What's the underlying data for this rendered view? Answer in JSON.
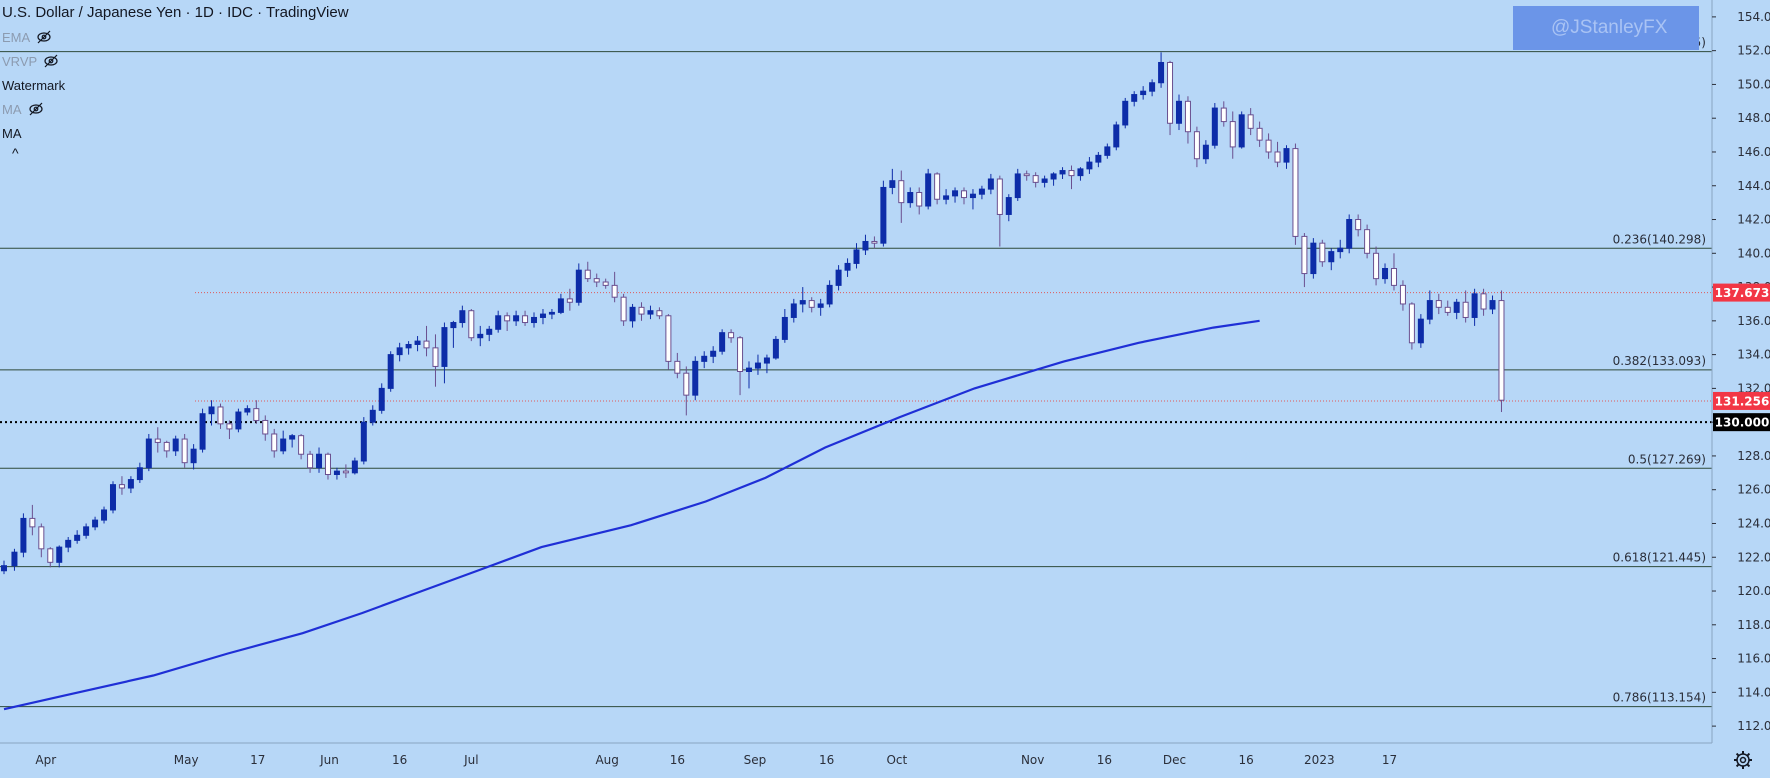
{
  "legend": {
    "title": "U.S. Dollar / Japanese Yen · 1D · IDC · TradingView",
    "indicators": [
      {
        "label": "EMA",
        "hidden": true
      },
      {
        "label": "VRVP",
        "hidden": true
      },
      {
        "label": "Watermark",
        "hidden": false
      },
      {
        "label": "MA",
        "hidden": true
      },
      {
        "label": "MA",
        "hidden": false
      }
    ],
    "collapse_glyph": "^"
  },
  "watermark": "@JStanleyFX",
  "chart_data": {
    "type": "candlestick",
    "title": "U.S. Dollar / Japanese Yen · 1D · IDC · TradingView",
    "ylim": [
      111,
      155
    ],
    "y_ticks": [
      "112.000",
      "114.000",
      "116.000",
      "118.000",
      "120.000",
      "122.000",
      "124.000",
      "126.000",
      "128.000",
      "130.000",
      "132.000",
      "134.000",
      "136.000",
      "138.000",
      "140.000",
      "142.000",
      "144.000",
      "146.000",
      "148.000",
      "150.000",
      "152.000",
      "154.000"
    ],
    "x_labels": [
      {
        "label": "Apr",
        "pos": 0.028
      },
      {
        "label": "May",
        "pos": 0.122
      },
      {
        "label": "17",
        "pos": 0.17
      },
      {
        "label": "Jun",
        "pos": 0.218
      },
      {
        "label": "16",
        "pos": 0.265
      },
      {
        "label": "Jul",
        "pos": 0.313
      },
      {
        "label": "Aug",
        "pos": 0.404
      },
      {
        "label": "16",
        "pos": 0.451
      },
      {
        "label": "Sep",
        "pos": 0.503
      },
      {
        "label": "16",
        "pos": 0.551
      },
      {
        "label": "Oct",
        "pos": 0.598
      },
      {
        "label": "Nov",
        "pos": 0.689
      },
      {
        "label": "16",
        "pos": 0.737
      },
      {
        "label": "Dec",
        "pos": 0.784
      },
      {
        "label": "16",
        "pos": 0.832
      },
      {
        "label": "2023",
        "pos": 0.881
      },
      {
        "label": "17",
        "pos": 0.928
      }
    ],
    "horizontal_lines": [
      {
        "label": "0.236(140.298)",
        "value": 140.298
      },
      {
        "label": "0.382(133.093)",
        "value": 133.093
      },
      {
        "label": "0.5(127.269)",
        "value": 127.269
      },
      {
        "label": "0.618(121.445)",
        "value": 121.445
      },
      {
        "label": "0.786(113.154)",
        "value": 113.154
      },
      {
        "label": "(151.945)",
        "value": 151.945
      }
    ],
    "dotted_lines": [
      {
        "value": 137.673
      },
      {
        "value": 131.256
      }
    ],
    "reference_line": {
      "value": 130.0
    },
    "price_badges": [
      {
        "text": "137.673",
        "value": 137.673,
        "color": "#f23645",
        "text_color": "#ffffff"
      },
      {
        "text": "131.256",
        "value": 131.256,
        "color": "#f23645",
        "text_color": "#ffffff"
      },
      {
        "text": "130.000",
        "value": 130.0,
        "color": "#000000",
        "text_color": "#ffffff"
      }
    ],
    "ma_line": [
      [
        0.0,
        113.0
      ],
      [
        0.04,
        113.8
      ],
      [
        0.1,
        115.0
      ],
      [
        0.15,
        116.3
      ],
      [
        0.2,
        117.5
      ],
      [
        0.24,
        118.7
      ],
      [
        0.28,
        120.0
      ],
      [
        0.32,
        121.3
      ],
      [
        0.36,
        122.6
      ],
      [
        0.42,
        123.9
      ],
      [
        0.47,
        125.3
      ],
      [
        0.51,
        126.7
      ],
      [
        0.55,
        128.5
      ],
      [
        0.6,
        130.3
      ],
      [
        0.65,
        132.0
      ],
      [
        0.71,
        133.6
      ],
      [
        0.76,
        134.7
      ],
      [
        0.81,
        135.6
      ],
      [
        0.841,
        136.0
      ]
    ],
    "candles": [
      [
        0.0,
        121.2,
        121.8,
        121.0,
        121.5
      ],
      [
        0.007,
        121.5,
        122.5,
        121.2,
        122.3
      ],
      [
        0.013,
        122.3,
        124.6,
        122.0,
        124.3
      ],
      [
        0.019,
        124.3,
        125.1,
        123.3,
        123.8
      ],
      [
        0.025,
        123.8,
        124.0,
        122.0,
        122.5
      ],
      [
        0.031,
        122.5,
        122.6,
        121.4,
        121.7
      ],
      [
        0.037,
        121.7,
        122.7,
        121.4,
        122.6
      ],
      [
        0.043,
        122.6,
        123.2,
        122.3,
        123.0
      ],
      [
        0.049,
        123.0,
        123.6,
        122.8,
        123.3
      ],
      [
        0.055,
        123.3,
        124.0,
        123.1,
        123.8
      ],
      [
        0.061,
        123.8,
        124.4,
        123.6,
        124.2
      ],
      [
        0.067,
        124.2,
        125.0,
        124.0,
        124.8
      ],
      [
        0.073,
        124.8,
        126.5,
        124.6,
        126.3
      ],
      [
        0.079,
        126.3,
        126.8,
        125.7,
        126.1
      ],
      [
        0.085,
        126.1,
        126.8,
        125.8,
        126.6
      ],
      [
        0.091,
        126.6,
        127.6,
        126.4,
        127.3
      ],
      [
        0.097,
        127.3,
        129.3,
        127.1,
        129.0
      ],
      [
        0.103,
        129.0,
        129.7,
        128.2,
        128.8
      ],
      [
        0.109,
        128.8,
        128.9,
        127.9,
        128.3
      ],
      [
        0.115,
        128.3,
        129.2,
        128.0,
        129.0
      ],
      [
        0.121,
        129.0,
        129.3,
        127.3,
        127.6
      ],
      [
        0.127,
        127.6,
        128.7,
        127.2,
        128.4
      ],
      [
        0.133,
        128.4,
        130.8,
        128.2,
        130.5
      ],
      [
        0.139,
        130.5,
        131.3,
        129.8,
        130.9
      ],
      [
        0.145,
        130.9,
        131.1,
        129.6,
        129.9
      ],
      [
        0.151,
        129.9,
        130.1,
        129.0,
        129.6
      ],
      [
        0.157,
        129.6,
        130.8,
        129.4,
        130.6
      ],
      [
        0.163,
        130.6,
        131.0,
        130.4,
        130.8
      ],
      [
        0.169,
        130.8,
        131.3,
        129.9,
        130.1
      ],
      [
        0.175,
        130.1,
        130.4,
        128.9,
        129.3
      ],
      [
        0.181,
        129.3,
        129.6,
        127.9,
        128.3
      ],
      [
        0.187,
        128.3,
        129.5,
        128.1,
        129.0
      ],
      [
        0.193,
        129.0,
        129.3,
        128.5,
        129.2
      ],
      [
        0.199,
        129.2,
        129.3,
        127.8,
        128.1
      ],
      [
        0.205,
        128.1,
        128.3,
        127.0,
        127.3
      ],
      [
        0.211,
        127.3,
        128.5,
        127.0,
        128.1
      ],
      [
        0.217,
        128.1,
        128.2,
        126.6,
        126.9
      ],
      [
        0.223,
        126.9,
        127.3,
        126.6,
        127.1
      ],
      [
        0.229,
        127.1,
        127.5,
        126.7,
        127.0
      ],
      [
        0.235,
        127.0,
        127.9,
        126.9,
        127.7
      ],
      [
        0.241,
        127.7,
        130.3,
        127.5,
        130.0
      ],
      [
        0.247,
        130.0,
        131.0,
        129.8,
        130.7
      ],
      [
        0.253,
        130.7,
        132.3,
        130.5,
        132.0
      ],
      [
        0.259,
        132.0,
        134.2,
        131.8,
        134.0
      ],
      [
        0.265,
        134.0,
        134.7,
        133.6,
        134.4
      ],
      [
        0.271,
        134.4,
        134.8,
        134.0,
        134.6
      ],
      [
        0.277,
        134.6,
        135.1,
        134.2,
        134.8
      ],
      [
        0.283,
        134.8,
        135.7,
        133.9,
        134.4
      ],
      [
        0.289,
        134.4,
        135.2,
        132.1,
        133.3
      ],
      [
        0.295,
        133.3,
        135.9,
        132.3,
        135.6
      ],
      [
        0.301,
        135.6,
        136.0,
        134.4,
        135.9
      ],
      [
        0.307,
        135.9,
        136.9,
        135.6,
        136.6
      ],
      [
        0.313,
        136.6,
        136.7,
        134.8,
        135.0
      ],
      [
        0.319,
        135.0,
        135.7,
        134.5,
        135.2
      ],
      [
        0.325,
        135.2,
        135.7,
        134.8,
        135.5
      ],
      [
        0.331,
        135.5,
        136.6,
        135.3,
        136.3
      ],
      [
        0.337,
        136.3,
        136.5,
        135.4,
        136.0
      ],
      [
        0.343,
        136.0,
        136.6,
        135.7,
        136.3
      ],
      [
        0.349,
        136.3,
        136.6,
        135.7,
        135.9
      ],
      [
        0.355,
        135.9,
        136.5,
        135.6,
        136.2
      ],
      [
        0.361,
        136.2,
        136.7,
        135.8,
        136.4
      ],
      [
        0.367,
        136.4,
        136.7,
        136.1,
        136.5
      ],
      [
        0.373,
        136.5,
        137.6,
        136.4,
        137.3
      ],
      [
        0.379,
        137.3,
        137.9,
        136.6,
        137.1
      ],
      [
        0.385,
        137.1,
        139.4,
        136.9,
        139.0
      ],
      [
        0.391,
        139.0,
        139.5,
        138.3,
        138.5
      ],
      [
        0.397,
        138.5,
        138.8,
        138.0,
        138.3
      ],
      [
        0.403,
        138.3,
        138.5,
        137.9,
        138.1
      ],
      [
        0.409,
        138.1,
        138.9,
        137.1,
        137.4
      ],
      [
        0.415,
        137.4,
        137.6,
        135.7,
        136.0
      ],
      [
        0.421,
        136.0,
        137.0,
        135.6,
        136.8
      ],
      [
        0.427,
        136.8,
        137.1,
        136.0,
        136.4
      ],
      [
        0.433,
        136.4,
        136.9,
        136.1,
        136.6
      ],
      [
        0.439,
        136.6,
        136.8,
        136.1,
        136.3
      ],
      [
        0.445,
        136.3,
        136.4,
        133.1,
        133.6
      ],
      [
        0.451,
        133.6,
        134.1,
        132.6,
        132.9
      ],
      [
        0.457,
        132.9,
        133.3,
        130.4,
        131.6
      ],
      [
        0.463,
        131.6,
        133.9,
        131.3,
        133.6
      ],
      [
        0.469,
        133.6,
        134.2,
        133.2,
        133.9
      ],
      [
        0.475,
        133.9,
        134.5,
        133.5,
        134.2
      ],
      [
        0.481,
        134.2,
        135.5,
        134.0,
        135.3
      ],
      [
        0.487,
        135.3,
        135.5,
        134.7,
        135.0
      ],
      [
        0.493,
        135.0,
        135.1,
        131.6,
        133.0
      ],
      [
        0.499,
        133.0,
        133.6,
        132.0,
        133.2
      ],
      [
        0.505,
        133.2,
        134.0,
        132.8,
        133.5
      ],
      [
        0.511,
        133.5,
        134.0,
        132.9,
        133.8
      ],
      [
        0.517,
        133.8,
        135.1,
        133.7,
        134.9
      ],
      [
        0.523,
        134.9,
        136.7,
        134.7,
        136.2
      ],
      [
        0.529,
        136.2,
        137.3,
        135.9,
        137.0
      ],
      [
        0.535,
        137.0,
        138.0,
        136.5,
        137.2
      ],
      [
        0.541,
        137.2,
        137.4,
        136.5,
        136.8
      ],
      [
        0.547,
        136.8,
        137.3,
        136.3,
        137.0
      ],
      [
        0.553,
        137.0,
        138.4,
        136.8,
        138.1
      ],
      [
        0.559,
        138.1,
        139.3,
        137.8,
        139.0
      ],
      [
        0.565,
        139.0,
        139.7,
        138.6,
        139.4
      ],
      [
        0.571,
        139.4,
        140.6,
        139.1,
        140.2
      ],
      [
        0.577,
        140.2,
        141.1,
        139.9,
        140.7
      ],
      [
        0.583,
        140.7,
        141.0,
        140.3,
        140.6
      ],
      [
        0.589,
        140.6,
        144.3,
        140.4,
        143.9
      ],
      [
        0.595,
        143.9,
        145.0,
        143.5,
        144.3
      ],
      [
        0.601,
        144.3,
        144.9,
        141.8,
        143.0
      ],
      [
        0.607,
        143.0,
        143.9,
        142.7,
        143.6
      ],
      [
        0.613,
        143.6,
        143.9,
        142.3,
        142.8
      ],
      [
        0.619,
        142.8,
        145.0,
        142.6,
        144.7
      ],
      [
        0.625,
        144.7,
        144.8,
        142.9,
        143.2
      ],
      [
        0.631,
        143.2,
        143.8,
        142.9,
        143.4
      ],
      [
        0.637,
        143.4,
        143.9,
        143.0,
        143.7
      ],
      [
        0.643,
        143.7,
        143.9,
        142.9,
        143.3
      ],
      [
        0.649,
        143.3,
        143.8,
        142.6,
        143.5
      ],
      [
        0.655,
        143.5,
        144.0,
        143.2,
        143.8
      ],
      [
        0.661,
        143.8,
        144.7,
        143.5,
        144.4
      ],
      [
        0.667,
        144.4,
        144.6,
        140.4,
        142.3
      ],
      [
        0.673,
        142.3,
        143.5,
        141.9,
        143.3
      ],
      [
        0.679,
        143.3,
        145.0,
        143.1,
        144.7
      ],
      [
        0.685,
        144.7,
        144.9,
        144.3,
        144.6
      ],
      [
        0.691,
        144.6,
        144.8,
        143.9,
        144.2
      ],
      [
        0.697,
        144.2,
        144.6,
        143.9,
        144.4
      ],
      [
        0.703,
        144.4,
        144.8,
        144.0,
        144.7
      ],
      [
        0.709,
        144.7,
        145.1,
        144.4,
        144.9
      ],
      [
        0.715,
        144.9,
        145.2,
        143.8,
        144.6
      ],
      [
        0.721,
        144.6,
        145.1,
        144.3,
        145.0
      ],
      [
        0.727,
        145.0,
        145.7,
        144.7,
        145.4
      ],
      [
        0.733,
        145.4,
        146.0,
        145.1,
        145.8
      ],
      [
        0.739,
        145.8,
        146.5,
        145.6,
        146.3
      ],
      [
        0.745,
        146.3,
        147.8,
        146.1,
        147.6
      ],
      [
        0.751,
        147.6,
        149.2,
        147.4,
        149.0
      ],
      [
        0.757,
        149.0,
        149.6,
        148.7,
        149.4
      ],
      [
        0.763,
        149.4,
        149.9,
        149.1,
        149.6
      ],
      [
        0.769,
        149.6,
        150.3,
        149.3,
        150.1
      ],
      [
        0.775,
        150.1,
        151.9,
        149.8,
        151.3
      ],
      [
        0.781,
        151.3,
        151.4,
        147.0,
        147.7
      ],
      [
        0.787,
        147.7,
        149.4,
        147.3,
        149.0
      ],
      [
        0.793,
        149.0,
        149.3,
        146.5,
        147.2
      ],
      [
        0.799,
        147.2,
        147.5,
        145.1,
        145.6
      ],
      [
        0.805,
        145.6,
        146.7,
        145.3,
        146.4
      ],
      [
        0.811,
        146.4,
        148.9,
        146.2,
        148.6
      ],
      [
        0.817,
        148.6,
        149.0,
        147.5,
        147.8
      ],
      [
        0.823,
        147.8,
        148.4,
        145.6,
        146.3
      ],
      [
        0.829,
        146.3,
        148.4,
        146.2,
        148.2
      ],
      [
        0.835,
        148.2,
        148.6,
        147.0,
        147.4
      ],
      [
        0.841,
        147.4,
        147.8,
        146.3,
        146.7
      ],
      [
        0.847,
        146.7,
        147.1,
        145.6,
        146.0
      ],
      [
        0.853,
        146.0,
        146.6,
        145.1,
        145.4
      ],
      [
        0.859,
        145.4,
        146.4,
        145.0,
        146.2
      ],
      [
        0.865,
        146.2,
        146.5,
        140.5,
        141.0
      ],
      [
        0.871,
        141.0,
        141.2,
        138.0,
        138.8
      ],
      [
        0.877,
        138.8,
        140.9,
        138.5,
        140.6
      ],
      [
        0.883,
        140.6,
        140.8,
        139.2,
        139.5
      ],
      [
        0.889,
        139.5,
        140.3,
        139.0,
        140.1
      ],
      [
        0.895,
        140.1,
        140.8,
        139.7,
        140.3
      ],
      [
        0.901,
        140.3,
        142.3,
        140.0,
        142.0
      ],
      [
        0.907,
        142.0,
        142.3,
        141.0,
        141.4
      ],
      [
        0.913,
        141.4,
        141.7,
        139.7,
        140.0
      ],
      [
        0.919,
        140.0,
        140.4,
        138.1,
        138.5
      ],
      [
        0.925,
        138.5,
        139.4,
        138.2,
        139.1
      ],
      [
        0.931,
        139.1,
        140.0,
        137.8,
        138.1
      ],
      [
        0.937,
        138.1,
        138.4,
        136.6,
        137.0
      ],
      [
        0.943,
        137.0,
        137.1,
        134.3,
        134.7
      ],
      [
        0.949,
        134.7,
        136.4,
        134.4,
        136.1
      ],
      [
        0.955,
        136.1,
        137.8,
        135.8,
        137.2
      ],
      [
        0.961,
        137.2,
        137.6,
        136.4,
        136.8
      ],
      [
        0.967,
        136.8,
        137.2,
        136.3,
        136.5
      ],
      [
        0.973,
        136.5,
        137.3,
        136.1,
        137.1
      ],
      [
        0.979,
        137.1,
        137.8,
        135.9,
        136.2
      ],
      [
        0.985,
        136.2,
        137.9,
        135.7,
        137.6
      ],
      [
        0.991,
        137.6,
        137.9,
        136.3,
        136.7
      ],
      [
        0.997,
        136.7,
        137.5,
        136.4,
        137.2
      ],
      [
        1.003,
        137.2,
        137.8,
        130.6,
        131.3
      ]
    ]
  }
}
